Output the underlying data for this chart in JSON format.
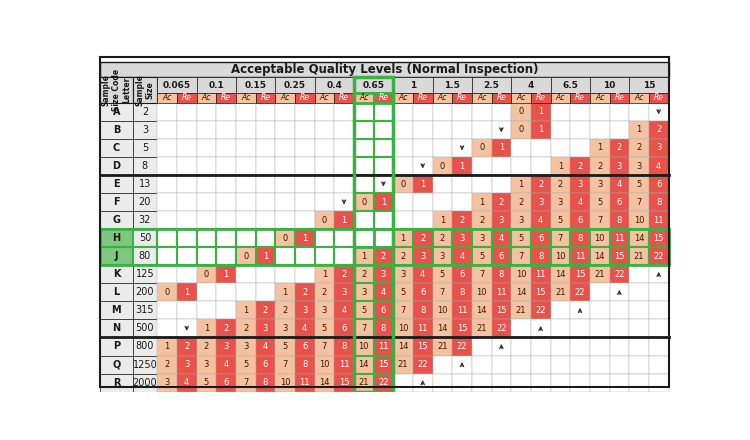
{
  "title": "Acceptable Quality Levels (Normal Inspection)",
  "aql_levels": [
    "0.065",
    "0.1",
    "0.15",
    "0.25",
    "0.4",
    "0.65",
    "1",
    "1.5",
    "2.5",
    "4",
    "6.5",
    "10",
    "15"
  ],
  "row_labels": [
    "A",
    "B",
    "C",
    "D",
    "E",
    "F",
    "G",
    "H",
    "J",
    "K",
    "L",
    "M",
    "N",
    "P",
    "Q",
    "R"
  ],
  "sample_sizes": [
    "2",
    "3",
    "5",
    "8",
    "13",
    "20",
    "32",
    "50",
    "80",
    "125",
    "200",
    "315",
    "500",
    "800",
    "1250",
    "2000"
  ],
  "green_highlight_col": "0.65",
  "green_highlight_rows": [
    "H",
    "J"
  ],
  "color_ac": "#F4C2A1",
  "color_re": "#E8524A",
  "color_header_bg": "#D9D9D9",
  "color_row_bg": "#EBEBEB",
  "color_green_row_bg": "#7DC87E",
  "color_green_border": "#3CB043",
  "color_black": "#1A1A1A",
  "color_cell_border": "#AAAAAA",
  "thick_border_after_rows": [
    "D",
    "N"
  ],
  "table_data": {
    "A": [
      null,
      null,
      null,
      null,
      null,
      null,
      null,
      null,
      null,
      null,
      null,
      null,
      null,
      null,
      null,
      null,
      null,
      null,
      "0",
      "1",
      null,
      null,
      null,
      null,
      null,
      "↓"
    ],
    "B": [
      null,
      null,
      null,
      null,
      null,
      null,
      null,
      null,
      null,
      null,
      null,
      null,
      null,
      null,
      null,
      null,
      null,
      "↓",
      "0",
      "1",
      null,
      null,
      null,
      null,
      "1",
      "2"
    ],
    "C": [
      null,
      null,
      null,
      null,
      null,
      null,
      null,
      null,
      null,
      null,
      null,
      null,
      null,
      null,
      null,
      "↓",
      "0",
      "1",
      null,
      null,
      null,
      null,
      "1",
      "2",
      "2",
      "3"
    ],
    "D": [
      null,
      null,
      null,
      null,
      null,
      null,
      null,
      null,
      null,
      null,
      null,
      null,
      null,
      "↓",
      "0",
      "1",
      null,
      null,
      null,
      null,
      "1",
      "2",
      "2",
      "3",
      "3",
      "4"
    ],
    "E": [
      null,
      null,
      null,
      null,
      null,
      null,
      null,
      null,
      null,
      null,
      null,
      "↓",
      "0",
      "1",
      null,
      null,
      null,
      null,
      "1",
      "2",
      "2",
      "3",
      "3",
      "4",
      "5",
      "6"
    ],
    "F": [
      null,
      null,
      null,
      null,
      null,
      null,
      null,
      null,
      null,
      "↓",
      "0",
      "1",
      null,
      null,
      null,
      null,
      "1",
      "2",
      "2",
      "3",
      "3",
      "4",
      "5",
      "6",
      "7",
      "8"
    ],
    "G": [
      null,
      null,
      null,
      null,
      null,
      null,
      null,
      null,
      "0",
      "1",
      null,
      null,
      null,
      null,
      "1",
      "2",
      "2",
      "3",
      "3",
      "4",
      "5",
      "6",
      "7",
      "8",
      "10",
      "11"
    ],
    "H": [
      null,
      null,
      null,
      null,
      null,
      null,
      "0",
      "1",
      null,
      null,
      null,
      null,
      "1",
      "2",
      "2",
      "3",
      "3",
      "4",
      "5",
      "6",
      "7",
      "8",
      "10",
      "11",
      "14",
      "15"
    ],
    "J": [
      null,
      null,
      null,
      null,
      "0",
      "1",
      null,
      null,
      null,
      null,
      "1",
      "2",
      "2",
      "3",
      "3",
      "4",
      "5",
      "6",
      "7",
      "8",
      "10",
      "11",
      "14",
      "15",
      "21",
      "22"
    ],
    "K": [
      null,
      null,
      "0",
      "1",
      null,
      null,
      null,
      null,
      "1",
      "2",
      "2",
      "3",
      "3",
      "4",
      "5",
      "6",
      "7",
      "8",
      "10",
      "11",
      "14",
      "15",
      "21",
      "22",
      null,
      "↑"
    ],
    "L": [
      "0",
      "1",
      null,
      null,
      null,
      null,
      "1",
      "2",
      "2",
      "3",
      "3",
      "4",
      "5",
      "6",
      "7",
      "8",
      "10",
      "11",
      "14",
      "15",
      "21",
      "22",
      null,
      "↑",
      null,
      null
    ],
    "M": [
      null,
      null,
      null,
      null,
      "1",
      "2",
      "2",
      "3",
      "3",
      "4",
      "5",
      "6",
      "7",
      "8",
      "10",
      "11",
      "14",
      "15",
      "21",
      "22",
      null,
      "↑",
      null,
      null,
      null,
      null
    ],
    "N": [
      null,
      "↓",
      "1",
      "2",
      "2",
      "3",
      "3",
      "4",
      "5",
      "6",
      "7",
      "8",
      "10",
      "11",
      "14",
      "15",
      "21",
      "22",
      null,
      "↑",
      null,
      null,
      null,
      null,
      null,
      null
    ],
    "P": [
      "1",
      "2",
      "2",
      "3",
      "3",
      "4",
      "5",
      "6",
      "7",
      "8",
      "10",
      "11",
      "14",
      "15",
      "21",
      "22",
      null,
      "↑",
      null,
      null,
      null,
      null,
      null,
      null,
      null,
      null
    ],
    "Q": [
      "2",
      "3",
      "3",
      "4",
      "5",
      "6",
      "7",
      "8",
      "10",
      "11",
      "14",
      "15",
      "21",
      "22",
      null,
      "↑",
      null,
      null,
      null,
      null,
      null,
      null,
      null,
      null,
      null,
      null
    ],
    "R": [
      "3",
      "4",
      "5",
      "6",
      "7",
      "8",
      "10",
      "11",
      "14",
      "15",
      "21",
      "22",
      null,
      "↑",
      null,
      null,
      null,
      null,
      null,
      null,
      null,
      null,
      null,
      null,
      null,
      null
    ]
  }
}
